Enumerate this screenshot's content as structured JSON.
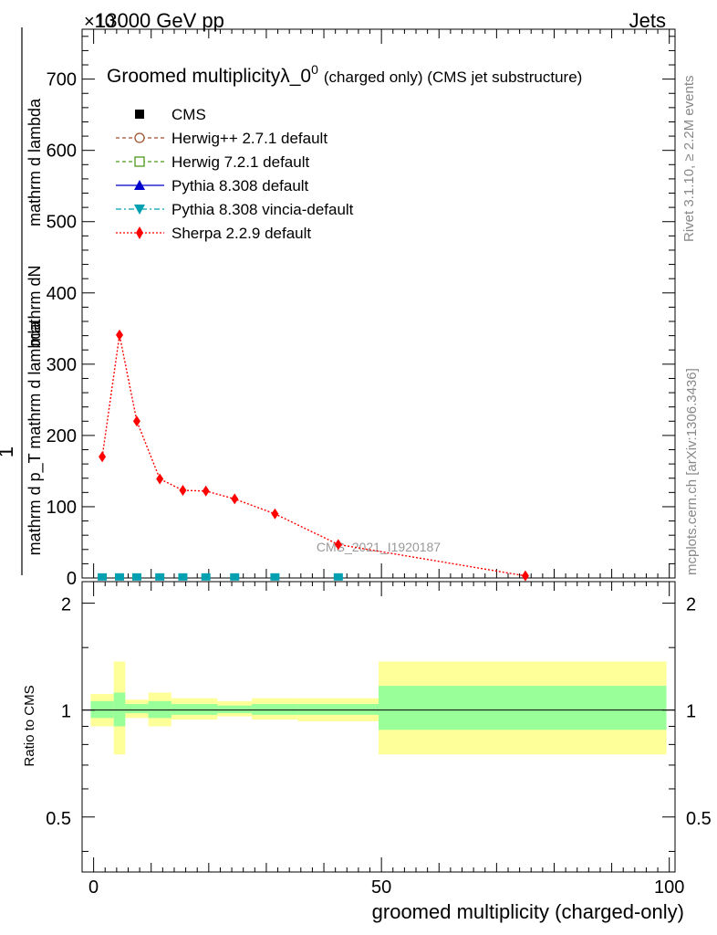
{
  "header": {
    "energy_label": "13000 GeV pp",
    "category_label": "Jets",
    "exponent_label": "×10"
  },
  "side_text": {
    "rivet": "Rivet 3.1.10, ≥ 2.2M events",
    "mcplots": "mcplots.cern.ch [arXiv:1306.3436]"
  },
  "colors": {
    "cms": "#000000",
    "herwigpp": "#a0522d",
    "herwig7": "#4a9a1a",
    "pythia": "#0000cc",
    "vincia": "#00a0b0",
    "sherpa": "#ff0000",
    "band_outer": "#ffff99",
    "band_inner": "#99ff99"
  },
  "chart_data": [
    {
      "type": "line",
      "title_main": "Groomed multiplicity",
      "title_lambda": "λ_0",
      "title_sup": "0",
      "title_suffix": "(charged only) (CMS jet substructure)",
      "ylabel_numerator": "mathrm dN",
      "ylabel_denominator": "mathrm d p_T mathrm d lambda",
      "ylabel_prefix": "1",
      "ylabel_fraction_bottom": "mathrm d N / mathrm d p_T mathrm d p",
      "ylim": [
        0,
        770
      ],
      "yticks": [
        "0",
        "100",
        "200",
        "300",
        "400",
        "500",
        "600",
        "700"
      ],
      "xlim": [
        -2,
        101
      ],
      "watermark": "CMS_2021_I1920187",
      "legend": [
        "CMS",
        "Herwig++ 2.7.1 default",
        "Herwig 7.2.1 default",
        "Pythia 8.308 default",
        "Pythia 8.308 vincia-default",
        "Sherpa 2.2.9 default"
      ],
      "series": [
        {
          "name": "Sherpa 2.2.9 default",
          "x": [
            1.5,
            4.5,
            7.5,
            11.5,
            15.5,
            19.5,
            24.5,
            31.5,
            42.5,
            75
          ],
          "y": [
            170,
            341,
            220,
            139,
            123,
            122,
            111,
            90,
            47,
            3
          ]
        },
        {
          "name": "CMS",
          "x": [
            1.5,
            4.5,
            7.5,
            11.5,
            15.5,
            19.5,
            24.5,
            31.5,
            42.5,
            75
          ],
          "y": [
            1.5,
            1.5,
            1.5,
            1.5,
            1.5,
            1.5,
            1.5,
            1.5,
            1.5,
            0
          ]
        }
      ]
    },
    {
      "type": "area",
      "ylabel": "Ratio to CMS",
      "xlabel": "groomed multiplicity (charged-only)",
      "ylim": [
        0.35,
        2.3
      ],
      "yticks": [
        "0.5",
        "1",
        "2"
      ],
      "xticks": [
        "0",
        "50",
        "100"
      ],
      "bins": [
        {
          "x0": -0.5,
          "x1": 3.5,
          "inner": [
            0.95,
            1.06
          ],
          "outer": [
            0.9,
            1.11
          ]
        },
        {
          "x0": 3.5,
          "x1": 5.5,
          "inner": [
            0.9,
            1.12
          ],
          "outer": [
            0.75,
            1.37
          ]
        },
        {
          "x0": 5.5,
          "x1": 9.5,
          "inner": [
            0.98,
            1.04
          ],
          "outer": [
            0.95,
            1.07
          ]
        },
        {
          "x0": 9.5,
          "x1": 13.5,
          "inner": [
            0.95,
            1.06
          ],
          "outer": [
            0.9,
            1.12
          ]
        },
        {
          "x0": 13.5,
          "x1": 21.5,
          "inner": [
            0.97,
            1.04
          ],
          "outer": [
            0.94,
            1.08
          ]
        },
        {
          "x0": 21.5,
          "x1": 27.5,
          "inner": [
            0.98,
            1.03
          ],
          "outer": [
            0.96,
            1.06
          ]
        },
        {
          "x0": 27.5,
          "x1": 35.5,
          "inner": [
            0.97,
            1.04
          ],
          "outer": [
            0.94,
            1.08
          ]
        },
        {
          "x0": 35.5,
          "x1": 49.5,
          "inner": [
            0.97,
            1.04
          ],
          "outer": [
            0.93,
            1.08
          ]
        },
        {
          "x0": 49.5,
          "x1": 99.5,
          "inner": [
            0.88,
            1.17
          ],
          "outer": [
            0.75,
            1.37
          ]
        }
      ]
    }
  ]
}
